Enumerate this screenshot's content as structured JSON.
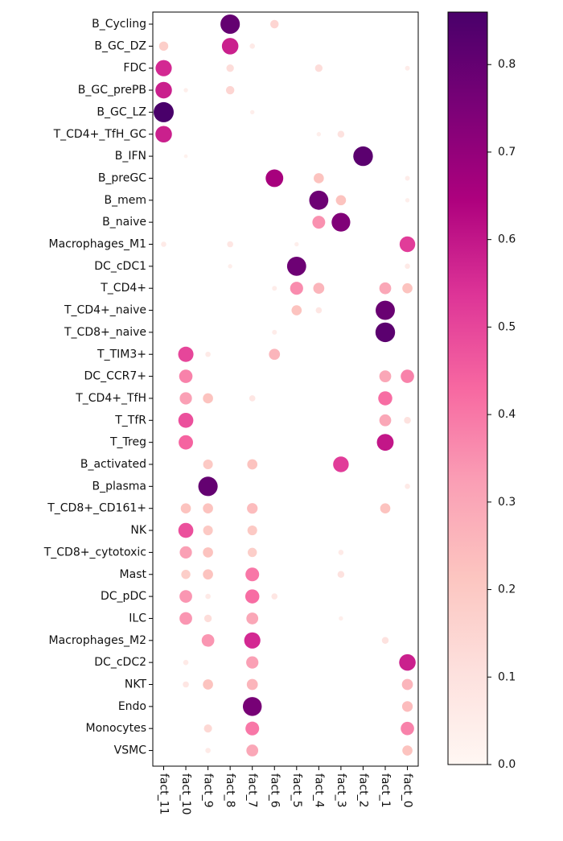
{
  "chart_data": {
    "type": "dotplot",
    "title": "",
    "xlabel": "",
    "ylabel": "",
    "color_scale": {
      "colormap": "RdPu",
      "min": 0.0,
      "max": 0.86,
      "ticks": [
        0.0,
        0.1,
        0.2,
        0.3,
        0.4,
        0.5,
        0.6,
        0.7,
        0.8
      ],
      "tick_labels": [
        "0.0",
        "0.1",
        "0.2",
        "0.3",
        "0.4",
        "0.5",
        "0.6",
        "0.7",
        "0.8"
      ],
      "stops": [
        "#fff7f3",
        "#fde0dd",
        "#fcc5c0",
        "#fa9fb5",
        "#f768a1",
        "#dd3497",
        "#ae017e",
        "#7a0177",
        "#49006a"
      ]
    },
    "x_categories": [
      "fact_11",
      "fact_10",
      "fact_9",
      "fact_8",
      "fact_7",
      "fact_6",
      "fact_5",
      "fact_4",
      "fact_3",
      "fact_2",
      "fact_1",
      "fact_0"
    ],
    "y_categories": [
      "B_Cycling",
      "B_GC_DZ",
      "FDC",
      "B_GC_prePB",
      "B_GC_LZ",
      "T_CD4+_TfH_GC",
      "B_IFN",
      "B_preGC",
      "B_mem",
      "B_naive",
      "Macrophages_M1",
      "DC_cDC1",
      "T_CD4+",
      "T_CD4+_naive",
      "T_CD8+_naive",
      "T_TIM3+",
      "DC_CCR7+",
      "T_CD4+_TfH",
      "T_TfR",
      "T_Treg",
      "B_activated",
      "B_plasma",
      "T_CD8+_CD161+",
      "NK",
      "T_CD8+_cytotoxic",
      "Mast",
      "DC_pDC",
      "ILC",
      "Macrophages_M2",
      "DC_cDC2",
      "NKT",
      "Endo",
      "Monocytes",
      "VSMC"
    ],
    "points": [
      {
        "y": "B_Cycling",
        "x": "fact_8",
        "value": 0.8
      },
      {
        "y": "B_Cycling",
        "x": "fact_6",
        "value": 0.15
      },
      {
        "y": "B_GC_DZ",
        "x": "fact_11",
        "value": 0.18
      },
      {
        "y": "B_GC_DZ",
        "x": "fact_8",
        "value": 0.58
      },
      {
        "y": "B_GC_DZ",
        "x": "fact_7",
        "value": 0.06
      },
      {
        "y": "FDC",
        "x": "fact_11",
        "value": 0.56
      },
      {
        "y": "FDC",
        "x": "fact_8",
        "value": 0.12
      },
      {
        "y": "FDC",
        "x": "fact_4",
        "value": 0.12
      },
      {
        "y": "FDC",
        "x": "fact_0",
        "value": 0.05
      },
      {
        "y": "B_GC_prePB",
        "x": "fact_11",
        "value": 0.58
      },
      {
        "y": "B_GC_prePB",
        "x": "fact_10",
        "value": 0.04
      },
      {
        "y": "B_GC_prePB",
        "x": "fact_8",
        "value": 0.15
      },
      {
        "y": "B_GC_LZ",
        "x": "fact_11",
        "value": 0.86
      },
      {
        "y": "B_GC_LZ",
        "x": "fact_7",
        "value": 0.04
      },
      {
        "y": "T_CD4+_TfH_GC",
        "x": "fact_11",
        "value": 0.58
      },
      {
        "y": "T_CD4+_TfH_GC",
        "x": "fact_4",
        "value": 0.04
      },
      {
        "y": "T_CD4+_TfH_GC",
        "x": "fact_3",
        "value": 0.1
      },
      {
        "y": "B_IFN",
        "x": "fact_10",
        "value": 0.03
      },
      {
        "y": "B_IFN",
        "x": "fact_2",
        "value": 0.82
      },
      {
        "y": "B_preGC",
        "x": "fact_6",
        "value": 0.66
      },
      {
        "y": "B_preGC",
        "x": "fact_4",
        "value": 0.22
      },
      {
        "y": "B_preGC",
        "x": "fact_0",
        "value": 0.05
      },
      {
        "y": "B_mem",
        "x": "fact_4",
        "value": 0.78
      },
      {
        "y": "B_mem",
        "x": "fact_3",
        "value": 0.22
      },
      {
        "y": "B_mem",
        "x": "fact_0",
        "value": 0.04
      },
      {
        "y": "B_naive",
        "x": "fact_4",
        "value": 0.35
      },
      {
        "y": "B_naive",
        "x": "fact_3",
        "value": 0.74
      },
      {
        "y": "Macrophages_M1",
        "x": "fact_11",
        "value": 0.06
      },
      {
        "y": "Macrophages_M1",
        "x": "fact_8",
        "value": 0.08
      },
      {
        "y": "Macrophages_M1",
        "x": "fact_5",
        "value": 0.04
      },
      {
        "y": "Macrophages_M1",
        "x": "fact_0",
        "value": 0.52
      },
      {
        "y": "DC_cDC1",
        "x": "fact_8",
        "value": 0.04
      },
      {
        "y": "DC_cDC1",
        "x": "fact_5",
        "value": 0.78
      },
      {
        "y": "DC_cDC1",
        "x": "fact_0",
        "value": 0.06
      },
      {
        "y": "T_CD4+",
        "x": "fact_6",
        "value": 0.05
      },
      {
        "y": "T_CD4+",
        "x": "fact_5",
        "value": 0.36
      },
      {
        "y": "T_CD4+",
        "x": "fact_4",
        "value": 0.26
      },
      {
        "y": "T_CD4+",
        "x": "fact_1",
        "value": 0.3
      },
      {
        "y": "T_CD4+",
        "x": "fact_0",
        "value": 0.22
      },
      {
        "y": "T_CD4+_naive",
        "x": "fact_5",
        "value": 0.22
      },
      {
        "y": "T_CD4+_naive",
        "x": "fact_4",
        "value": 0.08
      },
      {
        "y": "T_CD4+_naive",
        "x": "fact_1",
        "value": 0.79
      },
      {
        "y": "T_CD8+_naive",
        "x": "fact_6",
        "value": 0.05
      },
      {
        "y": "T_CD8+_naive",
        "x": "fact_1",
        "value": 0.82
      },
      {
        "y": "T_TIM3+",
        "x": "fact_10",
        "value": 0.5
      },
      {
        "y": "T_TIM3+",
        "x": "fact_9",
        "value": 0.06
      },
      {
        "y": "T_TIM3+",
        "x": "fact_6",
        "value": 0.26
      },
      {
        "y": "DC_CCR7+",
        "x": "fact_10",
        "value": 0.38
      },
      {
        "y": "DC_CCR7+",
        "x": "fact_1",
        "value": 0.3
      },
      {
        "y": "DC_CCR7+",
        "x": "fact_0",
        "value": 0.38
      },
      {
        "y": "T_CD4+_TfH",
        "x": "fact_10",
        "value": 0.32
      },
      {
        "y": "T_CD4+_TfH",
        "x": "fact_9",
        "value": 0.22
      },
      {
        "y": "T_CD4+_TfH",
        "x": "fact_7",
        "value": 0.08
      },
      {
        "y": "T_CD4+_TfH",
        "x": "fact_1",
        "value": 0.42
      },
      {
        "y": "T_TfR",
        "x": "fact_10",
        "value": 0.48
      },
      {
        "y": "T_TfR",
        "x": "fact_1",
        "value": 0.3
      },
      {
        "y": "T_TfR",
        "x": "fact_0",
        "value": 0.1
      },
      {
        "y": "T_Treg",
        "x": "fact_10",
        "value": 0.44
      },
      {
        "y": "T_Treg",
        "x": "fact_1",
        "value": 0.6
      },
      {
        "y": "B_activated",
        "x": "fact_9",
        "value": 0.2
      },
      {
        "y": "B_activated",
        "x": "fact_7",
        "value": 0.22
      },
      {
        "y": "B_activated",
        "x": "fact_3",
        "value": 0.52
      },
      {
        "y": "B_plasma",
        "x": "fact_9",
        "value": 0.8
      },
      {
        "y": "B_plasma",
        "x": "fact_0",
        "value": 0.06
      },
      {
        "y": "T_CD8+_CD161+",
        "x": "fact_10",
        "value": 0.22
      },
      {
        "y": "T_CD8+_CD161+",
        "x": "fact_9",
        "value": 0.22
      },
      {
        "y": "T_CD8+_CD161+",
        "x": "fact_7",
        "value": 0.24
      },
      {
        "y": "T_CD8+_CD161+",
        "x": "fact_1",
        "value": 0.22
      },
      {
        "y": "NK",
        "x": "fact_10",
        "value": 0.48
      },
      {
        "y": "NK",
        "x": "fact_9",
        "value": 0.2
      },
      {
        "y": "NK",
        "x": "fact_7",
        "value": 0.2
      },
      {
        "y": "T_CD8+_cytotoxic",
        "x": "fact_10",
        "value": 0.32
      },
      {
        "y": "T_CD8+_cytotoxic",
        "x": "fact_9",
        "value": 0.22
      },
      {
        "y": "T_CD8+_cytotoxic",
        "x": "fact_7",
        "value": 0.18
      },
      {
        "y": "T_CD8+_cytotoxic",
        "x": "fact_3",
        "value": 0.06
      },
      {
        "y": "Mast",
        "x": "fact_10",
        "value": 0.18
      },
      {
        "y": "Mast",
        "x": "fact_9",
        "value": 0.22
      },
      {
        "y": "Mast",
        "x": "fact_7",
        "value": 0.4
      },
      {
        "y": "Mast",
        "x": "fact_3",
        "value": 0.1
      },
      {
        "y": "DC_pDC",
        "x": "fact_10",
        "value": 0.34
      },
      {
        "y": "DC_pDC",
        "x": "fact_9",
        "value": 0.06
      },
      {
        "y": "DC_pDC",
        "x": "fact_7",
        "value": 0.42
      },
      {
        "y": "DC_pDC",
        "x": "fact_6",
        "value": 0.08
      },
      {
        "y": "ILC",
        "x": "fact_10",
        "value": 0.34
      },
      {
        "y": "ILC",
        "x": "fact_9",
        "value": 0.12
      },
      {
        "y": "ILC",
        "x": "fact_7",
        "value": 0.3
      },
      {
        "y": "ILC",
        "x": "fact_3",
        "value": 0.04
      },
      {
        "y": "Macrophages_M2",
        "x": "fact_9",
        "value": 0.34
      },
      {
        "y": "Macrophages_M2",
        "x": "fact_7",
        "value": 0.56
      },
      {
        "y": "Macrophages_M2",
        "x": "fact_1",
        "value": 0.1
      },
      {
        "y": "DC_cDC2",
        "x": "fact_10",
        "value": 0.06
      },
      {
        "y": "DC_cDC2",
        "x": "fact_7",
        "value": 0.32
      },
      {
        "y": "DC_cDC2",
        "x": "fact_0",
        "value": 0.58
      },
      {
        "y": "NKT",
        "x": "fact_10",
        "value": 0.08
      },
      {
        "y": "NKT",
        "x": "fact_9",
        "value": 0.22
      },
      {
        "y": "NKT",
        "x": "fact_7",
        "value": 0.26
      },
      {
        "y": "NKT",
        "x": "fact_0",
        "value": 0.26
      },
      {
        "y": "Endo",
        "x": "fact_7",
        "value": 0.76
      },
      {
        "y": "Endo",
        "x": "fact_0",
        "value": 0.24
      },
      {
        "y": "Monocytes",
        "x": "fact_9",
        "value": 0.14
      },
      {
        "y": "Monocytes",
        "x": "fact_7",
        "value": 0.4
      },
      {
        "y": "Monocytes",
        "x": "fact_0",
        "value": 0.38
      },
      {
        "y": "VSMC",
        "x": "fact_9",
        "value": 0.06
      },
      {
        "y": "VSMC",
        "x": "fact_7",
        "value": 0.3
      },
      {
        "y": "VSMC",
        "x": "fact_0",
        "value": 0.22
      }
    ]
  }
}
